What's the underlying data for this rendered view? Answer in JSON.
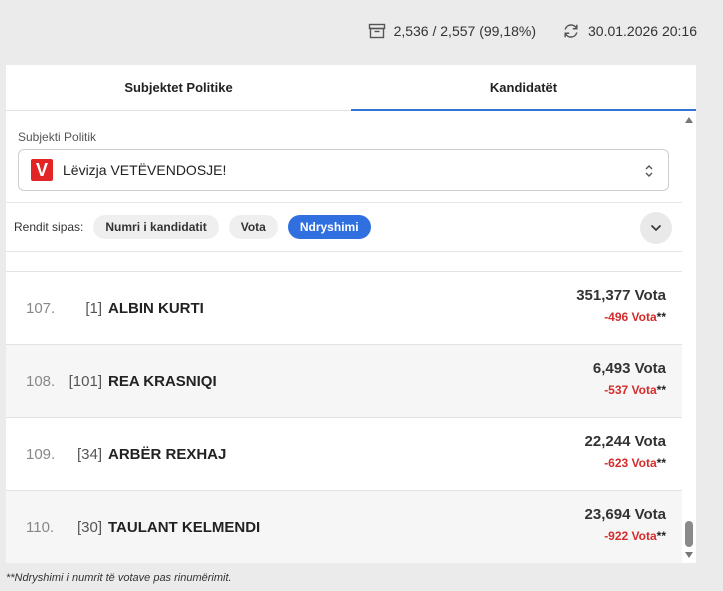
{
  "status": {
    "stations": "2,536 / 2,557 (99,18%)",
    "updated": "30.01.2026 20:16"
  },
  "tabs": [
    {
      "label": "Subjektet Politike",
      "active": false
    },
    {
      "label": "Kandidatët",
      "active": true
    }
  ],
  "filter": {
    "label": "Subjekti Politik",
    "logo_letter": "V",
    "selected": "Lëvizja VETËVENDOSJE!"
  },
  "sort": {
    "label": "Rendit sipas:",
    "options": [
      "Numri i kandidatit",
      "Vota",
      "Ndryshimi"
    ],
    "active": "Ndryshimi"
  },
  "rows": [
    {
      "index": "107.",
      "number": "[1]",
      "name": "ALBIN KURTI",
      "votes": "351,377 Vota",
      "change": "-496 Vota",
      "suffix": "**"
    },
    {
      "index": "108.",
      "number": "[101]",
      "name": "REA KRASNIQI",
      "votes": "6,493 Vota",
      "change": "-537 Vota",
      "suffix": "**"
    },
    {
      "index": "109.",
      "number": "[34]",
      "name": "ARBËR REXHAJ",
      "votes": "22,244 Vota",
      "change": "-623 Vota",
      "suffix": "**"
    },
    {
      "index": "110.",
      "number": "[30]",
      "name": "TAULANT KELMENDI",
      "votes": "23,694 Vota",
      "change": "-922 Vota",
      "suffix": "**"
    }
  ],
  "footnote": "**Ndryshimi i numrit të votave pas rinumërimit.",
  "colors": {
    "accent": "#2f6fe0",
    "negative": "#d52b2b",
    "logo": "#e32427"
  }
}
